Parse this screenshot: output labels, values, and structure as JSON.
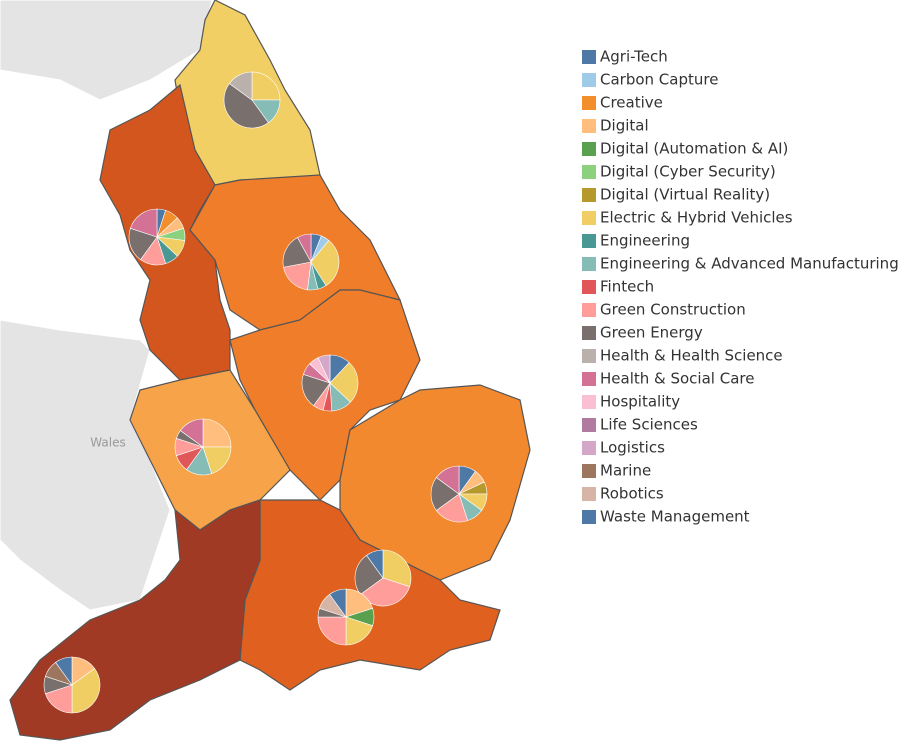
{
  "legend": [
    {
      "name": "Agri-Tech",
      "color": "#4e79a7"
    },
    {
      "name": "Carbon Capture",
      "color": "#a0cbe8"
    },
    {
      "name": "Creative",
      "color": "#f28e2b"
    },
    {
      "name": "Digital",
      "color": "#ffbe7d"
    },
    {
      "name": "Digital (Automation & AI)",
      "color": "#59a14f"
    },
    {
      "name": "Digital (Cyber Security)",
      "color": "#8cd17d"
    },
    {
      "name": "Digital (Virtual Reality)",
      "color": "#b6992d"
    },
    {
      "name": "Electric & Hybrid Vehicles",
      "color": "#f1ce63"
    },
    {
      "name": "Engineering",
      "color": "#499894"
    },
    {
      "name": "Engineering & Advanced Manufacturing",
      "color": "#86bcb6"
    },
    {
      "name": "Fintech",
      "color": "#e15759"
    },
    {
      "name": "Green Construction",
      "color": "#ff9d9a"
    },
    {
      "name": "Green Energy",
      "color": "#79706e"
    },
    {
      "name": "Health & Health Science",
      "color": "#bab0ac"
    },
    {
      "name": "Health & Social Care",
      "color": "#d37295"
    },
    {
      "name": "Hospitality",
      "color": "#fabfd2"
    },
    {
      "name": "Life Sciences",
      "color": "#b07aa1"
    },
    {
      "name": "Logistics",
      "color": "#d4a6c8"
    },
    {
      "name": "Marine",
      "color": "#9d7660"
    },
    {
      "name": "Robotics",
      "color": "#d7b5a6"
    },
    {
      "name": "Waste Management",
      "color": "#4e79a7"
    }
  ],
  "map_label": "Wales",
  "pies": [
    {
      "slices": [
        {
          "category": "Electric & Hybrid Vehicles",
          "value": 25
        },
        {
          "category": "Engineering & Advanced Manufacturing",
          "value": 15
        },
        {
          "category": "Green Energy",
          "value": 45
        },
        {
          "category": "Health & Health Science",
          "value": 15
        }
      ]
    },
    {
      "slices": [
        {
          "category": "Agri-Tech",
          "value": 5
        },
        {
          "category": "Creative",
          "value": 8
        },
        {
          "category": "Digital",
          "value": 7
        },
        {
          "category": "Digital (Cyber Security)",
          "value": 7
        },
        {
          "category": "Electric & Hybrid Vehicles",
          "value": 10
        },
        {
          "category": "Engineering",
          "value": 8
        },
        {
          "category": "Green Construction",
          "value": 15
        },
        {
          "category": "Green Energy",
          "value": 20
        },
        {
          "category": "Health & Social Care",
          "value": 20
        }
      ]
    },
    {
      "slices": [
        {
          "category": "Agri-Tech",
          "value": 6
        },
        {
          "category": "Carbon Capture",
          "value": 5
        },
        {
          "category": "Electric & Hybrid Vehicles",
          "value": 30
        },
        {
          "category": "Engineering",
          "value": 5
        },
        {
          "category": "Engineering & Advanced Manufacturing",
          "value": 6
        },
        {
          "category": "Green Construction",
          "value": 20
        },
        {
          "category": "Green Energy",
          "value": 20
        },
        {
          "category": "Health & Social Care",
          "value": 8
        }
      ]
    },
    {
      "slices": [
        {
          "category": "Agri-Tech",
          "value": 12
        },
        {
          "category": "Electric & Hybrid Vehicles",
          "value": 25
        },
        {
          "category": "Engineering & Advanced Manufacturing",
          "value": 12
        },
        {
          "category": "Fintech",
          "value": 5
        },
        {
          "category": "Green Construction",
          "value": 6
        },
        {
          "category": "Green Energy",
          "value": 20
        },
        {
          "category": "Health & Social Care",
          "value": 7
        },
        {
          "category": "Hospitality",
          "value": 6
        },
        {
          "category": "Logistics",
          "value": 7
        }
      ]
    },
    {
      "slices": [
        {
          "category": "Digital",
          "value": 25
        },
        {
          "category": "Electric & Hybrid Vehicles",
          "value": 20
        },
        {
          "category": "Engineering & Advanced Manufacturing",
          "value": 15
        },
        {
          "category": "Fintech",
          "value": 10
        },
        {
          "category": "Green Construction",
          "value": 10
        },
        {
          "category": "Green Energy",
          "value": 5
        },
        {
          "category": "Health & Social Care",
          "value": 15
        }
      ]
    },
    {
      "slices": [
        {
          "category": "Agri-Tech",
          "value": 10
        },
        {
          "category": "Digital",
          "value": 8
        },
        {
          "category": "Digital (Virtual Reality)",
          "value": 7
        },
        {
          "category": "Electric & Hybrid Vehicles",
          "value": 10
        },
        {
          "category": "Engineering & Advanced Manufacturing",
          "value": 10
        },
        {
          "category": "Green Construction",
          "value": 20
        },
        {
          "category": "Green Energy",
          "value": 20
        },
        {
          "category": "Health & Social Care",
          "value": 15
        }
      ]
    },
    {
      "slices": [
        {
          "category": "Electric & Hybrid Vehicles",
          "value": 30
        },
        {
          "category": "Green Construction",
          "value": 35
        },
        {
          "category": "Green Energy",
          "value": 25
        },
        {
          "category": "Agri-Tech",
          "value": 10
        }
      ]
    },
    {
      "slices": [
        {
          "category": "Digital",
          "value": 20
        },
        {
          "category": "Digital (Automation & AI)",
          "value": 10
        },
        {
          "category": "Electric & Hybrid Vehicles",
          "value": 20
        },
        {
          "category": "Green Construction",
          "value": 25
        },
        {
          "category": "Green Energy",
          "value": 5
        },
        {
          "category": "Robotics",
          "value": 10
        },
        {
          "category": "Agri-Tech",
          "value": 10
        }
      ]
    },
    {
      "slices": [
        {
          "category": "Digital",
          "value": 15
        },
        {
          "category": "Electric & Hybrid Vehicles",
          "value": 35
        },
        {
          "category": "Green Construction",
          "value": 20
        },
        {
          "category": "Green Energy",
          "value": 10
        },
        {
          "category": "Marine",
          "value": 10
        },
        {
          "category": "Agri-Tech",
          "value": 10
        }
      ]
    }
  ]
}
